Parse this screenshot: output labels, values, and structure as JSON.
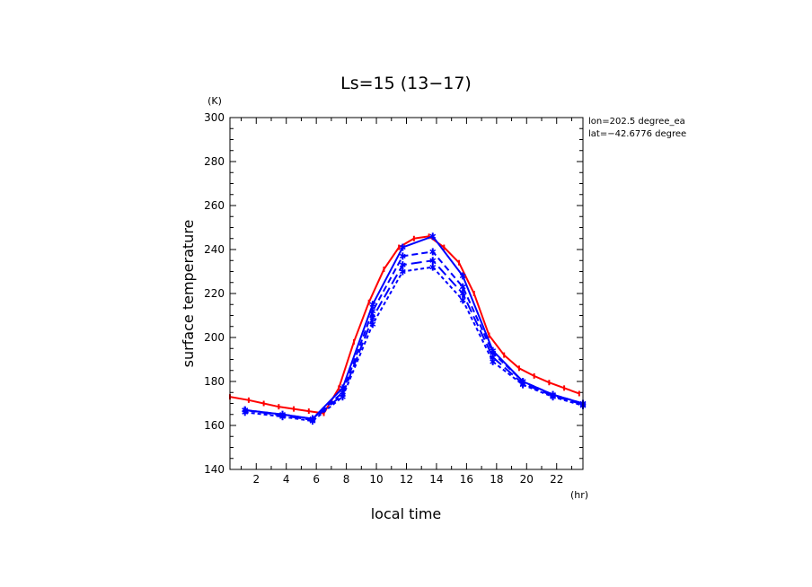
{
  "chart_data": {
    "type": "line",
    "title": "Ls=15 (13−17)",
    "xlabel": "local time",
    "ylabel": "surface temperature",
    "x_unit": "(hr)",
    "y_unit": "(K)",
    "xlim": [
      0.25,
      23.75
    ],
    "ylim": [
      140,
      300
    ],
    "x_ticks": [
      2,
      4,
      6,
      8,
      10,
      12,
      14,
      16,
      18,
      20,
      22
    ],
    "y_ticks": [
      140,
      160,
      180,
      200,
      220,
      240,
      260,
      280,
      300
    ],
    "annotations": [
      "lon=202.5 degree_ea",
      "lat=−42.6776 degree"
    ],
    "grid": false,
    "colors": {
      "red": "#ff0000",
      "blue": "#0000ff"
    },
    "series": [
      {
        "style": "solid",
        "color": "#ff0000",
        "x": [
          0.25,
          1.5,
          2.5,
          3.5,
          4.5,
          5.5,
          6.5,
          7.5,
          8.5,
          9.5,
          10.5,
          11.5,
          12.5,
          13.5,
          14.5,
          15.5,
          16.5,
          17.5,
          18.5,
          19.5,
          20.5,
          21.5,
          22.5,
          23.5
        ],
        "y": [
          173,
          171.5,
          170,
          168.5,
          167.5,
          166.5,
          165.5,
          177,
          198,
          216,
          231,
          241,
          245,
          246,
          241,
          234,
          220,
          201,
          192,
          186,
          182.5,
          179.5,
          177,
          174.5
        ]
      },
      {
        "style": "solid",
        "color": "#0000ff",
        "x": [
          1.25,
          3.75,
          5.75,
          7.75,
          9.75,
          11.75,
          13.75,
          15.75,
          17.75,
          19.75,
          21.75,
          23.75
        ],
        "y": [
          167,
          165,
          163,
          177,
          215,
          241,
          246,
          228,
          194,
          180,
          174,
          170
        ]
      },
      {
        "style": "dash",
        "color": "#0000ff",
        "x": [
          1.25,
          3.75,
          5.75,
          7.75,
          9.75,
          11.75,
          13.75,
          15.75,
          17.75,
          19.75,
          21.75,
          23.75
        ],
        "y": [
          167,
          165,
          163,
          175,
          212,
          237,
          239,
          223,
          193,
          180,
          174,
          170
        ]
      },
      {
        "style": "longdash",
        "color": "#0000ff",
        "x": [
          1.25,
          3.75,
          5.75,
          7.75,
          9.75,
          11.75,
          13.75,
          15.75,
          17.75,
          19.75,
          21.75,
          23.75
        ],
        "y": [
          167,
          164.5,
          162.5,
          174,
          209,
          233,
          235,
          220,
          191,
          179,
          173.5,
          169.5
        ]
      },
      {
        "style": "shortdash",
        "color": "#0000ff",
        "x": [
          1.25,
          3.75,
          5.75,
          7.75,
          9.75,
          11.75,
          13.75,
          15.75,
          17.75,
          19.75,
          21.75,
          23.75
        ],
        "y": [
          166,
          164,
          162,
          173,
          206,
          230,
          232,
          217,
          189,
          178.5,
          173,
          169
        ]
      }
    ]
  }
}
